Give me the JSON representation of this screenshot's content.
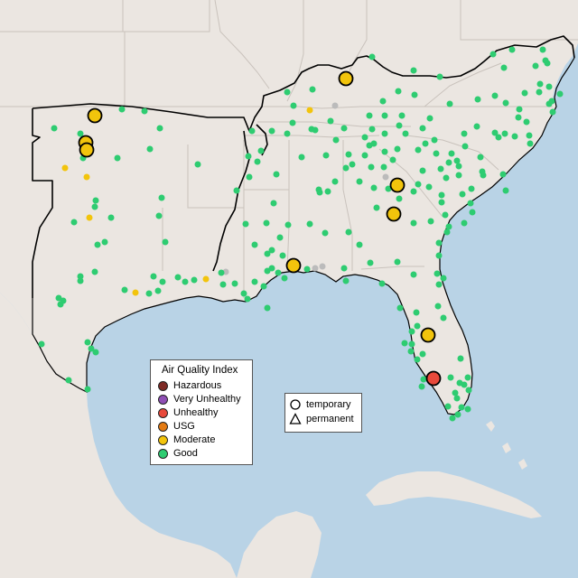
{
  "legend": {
    "title": "Air Quality Index",
    "categories": [
      {
        "label": "Hazardous",
        "color": "#7e2a25"
      },
      {
        "label": "Very Unhealthy",
        "color": "#8f4fb5"
      },
      {
        "label": "Unhealthy",
        "color": "#e8493b"
      },
      {
        "label": "USG",
        "color": "#e37a12"
      },
      {
        "label": "Moderate",
        "color": "#f2c40c"
      },
      {
        "label": "Good",
        "color": "#2ecc71"
      }
    ]
  },
  "site_legend": {
    "temporary_label": "temporary",
    "permanent_label": "permanent"
  },
  "colors": {
    "water": "#b9d3e6",
    "land": "#ebe6e1",
    "state_border": "#c9c2bc",
    "region_outline": "#000000",
    "no_data": "#bbbbbb"
  },
  "monitors": {
    "moderate_large": [
      [
        105,
        128
      ],
      [
        95,
        158
      ],
      [
        96,
        166
      ],
      [
        383,
        87
      ],
      [
        440,
        205
      ],
      [
        436,
        237
      ],
      [
        325,
        294
      ],
      [
        474,
        371
      ]
    ],
    "unhealthy_large": [
      [
        480,
        419
      ]
    ],
    "moderate_small": [
      [
        72,
        186
      ],
      [
        96,
        196
      ],
      [
        99,
        241
      ],
      [
        343,
        122
      ],
      [
        228,
        309
      ],
      [
        150,
        324
      ]
    ],
    "no_data_small": [
      [
        371,
        117
      ],
      [
        427,
        196
      ],
      [
        250,
        301
      ],
      [
        349,
        297
      ],
      [
        357,
        295
      ]
    ],
    "good": [
      [
        135,
        121
      ],
      [
        160,
        123
      ],
      [
        60,
        142
      ],
      [
        89,
        148
      ],
      [
        177,
        142
      ],
      [
        92,
        175
      ],
      [
        130,
        175
      ],
      [
        166,
        165
      ],
      [
        219,
        182
      ],
      [
        179,
        219
      ],
      [
        106,
        222
      ],
      [
        105,
        229
      ],
      [
        123,
        241
      ],
      [
        176,
        239
      ],
      [
        82,
        246
      ],
      [
        108,
        271
      ],
      [
        183,
        268
      ],
      [
        89,
        306
      ],
      [
        138,
        321
      ],
      [
        180,
        312
      ],
      [
        175,
        322
      ],
      [
        165,
        325
      ],
      [
        65,
        330
      ],
      [
        70,
        333
      ],
      [
        67,
        337
      ],
      [
        89,
        311
      ],
      [
        205,
        312
      ],
      [
        260,
        314
      ],
      [
        270,
        325
      ],
      [
        282,
        312
      ],
      [
        292,
        317
      ],
      [
        296,
        300
      ],
      [
        274,
        331
      ],
      [
        296,
        281
      ],
      [
        247,
        315
      ],
      [
        296,
        341
      ],
      [
        301,
        297
      ],
      [
        308,
        302
      ],
      [
        315,
        308
      ],
      [
        340,
        298
      ],
      [
        313,
        283
      ],
      [
        383,
        311
      ],
      [
        381,
        297
      ],
      [
        410,
        291
      ],
      [
        423,
        314
      ],
      [
        440,
        290
      ],
      [
        458,
        304
      ],
      [
        443,
        341
      ],
      [
        461,
        346
      ],
      [
        462,
        361
      ],
      [
        456,
        367
      ],
      [
        456,
        381
      ],
      [
        468,
        392
      ],
      [
        491,
        352
      ],
      [
        485,
        339
      ],
      [
        491,
        308
      ],
      [
        484,
        303
      ],
      [
        486,
        315
      ],
      [
        486,
        283
      ],
      [
        495,
        257
      ],
      [
        523,
        235
      ],
      [
        521,
        225
      ],
      [
        493,
        238
      ],
      [
        489,
        224
      ],
      [
        475,
        207
      ],
      [
        494,
        197
      ],
      [
        488,
        187
      ],
      [
        497,
        180
      ],
      [
        508,
        184
      ],
      [
        535,
        194
      ],
      [
        532,
        174
      ],
      [
        557,
        193
      ],
      [
        560,
        211
      ],
      [
        522,
        209
      ],
      [
        458,
        212
      ],
      [
        468,
        189
      ],
      [
        435,
        177
      ],
      [
        425,
        185
      ],
      [
        411,
        185
      ],
      [
        404,
        172
      ],
      [
        409,
        161
      ],
      [
        426,
        168
      ],
      [
        440,
        165
      ],
      [
        449,
        148
      ],
      [
        471,
        159
      ],
      [
        463,
        166
      ],
      [
        483,
        170
      ],
      [
        500,
        170
      ],
      [
        514,
        148
      ],
      [
        515,
        162
      ],
      [
        528,
        140
      ],
      [
        548,
        147
      ],
      [
        552,
        152
      ],
      [
        559,
        148
      ],
      [
        586,
        150
      ],
      [
        587,
        159
      ],
      [
        583,
        135
      ],
      [
        574,
        130
      ],
      [
        608,
        115
      ],
      [
        611,
        112
      ],
      [
        620,
        104
      ],
      [
        612,
        124
      ],
      [
        598,
        93
      ],
      [
        593,
        73
      ],
      [
        604,
        67
      ],
      [
        558,
        75
      ],
      [
        567,
        55
      ],
      [
        546,
        60
      ],
      [
        487,
        85
      ],
      [
        458,
        78
      ],
      [
        441,
        101
      ],
      [
        459,
        105
      ],
      [
        424,
        112
      ],
      [
        426,
        128
      ],
      [
        381,
        142
      ],
      [
        366,
        134
      ],
      [
        345,
        143
      ],
      [
        324,
        136
      ],
      [
        325,
        117
      ],
      [
        318,
        102
      ],
      [
        346,
        99
      ],
      [
        318,
        148
      ],
      [
        301,
        145
      ],
      [
        279,
        145
      ],
      [
        289,
        167
      ],
      [
        285,
        179
      ],
      [
        275,
        173
      ],
      [
        276,
        196
      ],
      [
        262,
        211
      ],
      [
        272,
        248
      ],
      [
        295,
        247
      ],
      [
        343,
        248
      ],
      [
        353,
        210
      ],
      [
        354,
        213
      ],
      [
        363,
        212
      ],
      [
        371,
        201
      ],
      [
        383,
        186
      ],
      [
        386,
        171
      ],
      [
        398,
        201
      ],
      [
        361,
        172
      ],
      [
        349,
        144
      ],
      [
        334,
        174
      ],
      [
        319,
        249
      ],
      [
        301,
        277
      ],
      [
        310,
        263
      ],
      [
        360,
        258
      ],
      [
        386,
        257
      ],
      [
        398,
        271
      ],
      [
        430,
        209
      ],
      [
        442,
        220
      ],
      [
        417,
        230
      ],
      [
        414,
        208
      ],
      [
        468,
        142
      ],
      [
        426,
        148
      ],
      [
        414,
        159
      ],
      [
        404,
        152
      ],
      [
        409,
        128
      ],
      [
        412,
        63
      ],
      [
        498,
        115
      ],
      [
        529,
        110
      ],
      [
        548,
        106
      ],
      [
        560,
        114
      ],
      [
        575,
        121
      ],
      [
        581,
        103
      ],
      [
        597,
        102
      ],
      [
        608,
        96
      ],
      [
        606,
        70
      ],
      [
        601,
        55
      ],
      [
        570,
        151
      ],
      [
        534,
        190
      ],
      [
        512,
        215
      ],
      [
        497,
        251
      ],
      [
        486,
        269
      ],
      [
        477,
        245
      ],
      [
        458,
        247
      ],
      [
        463,
        204
      ],
      [
        489,
        216
      ],
      [
        514,
        247
      ],
      [
        508,
        194
      ],
      [
        506,
        178
      ],
      [
        481,
        155
      ],
      [
        476,
        131
      ],
      [
        445,
        128
      ],
      [
        442,
        139
      ],
      [
        412,
        143
      ],
      [
        372,
        155
      ],
      [
        390,
        182
      ],
      [
        306,
        193
      ],
      [
        303,
        225
      ],
      [
        282,
        271
      ],
      [
        245,
        302
      ],
      [
        215,
        310
      ],
      [
        197,
        307
      ],
      [
        170,
        306
      ],
      [
        116,
        268
      ],
      [
        105,
        301
      ],
      [
        97,
        379
      ],
      [
        101,
        386
      ],
      [
        106,
        390
      ],
      [
        46,
        381
      ],
      [
        76,
        421
      ],
      [
        97,
        431
      ],
      [
        510,
        397
      ],
      [
        518,
        418
      ],
      [
        514,
        426
      ],
      [
        506,
        441
      ],
      [
        518,
        453
      ],
      [
        511,
        451
      ],
      [
        509,
        424
      ],
      [
        499,
        418
      ],
      [
        504,
        435
      ],
      [
        519,
        432
      ],
      [
        467,
        428
      ],
      [
        469,
        420
      ],
      [
        462,
        398
      ],
      [
        455,
        389
      ],
      [
        448,
        380
      ],
      [
        496,
        450
      ],
      [
        507,
        459
      ],
      [
        501,
        463
      ]
    ]
  }
}
